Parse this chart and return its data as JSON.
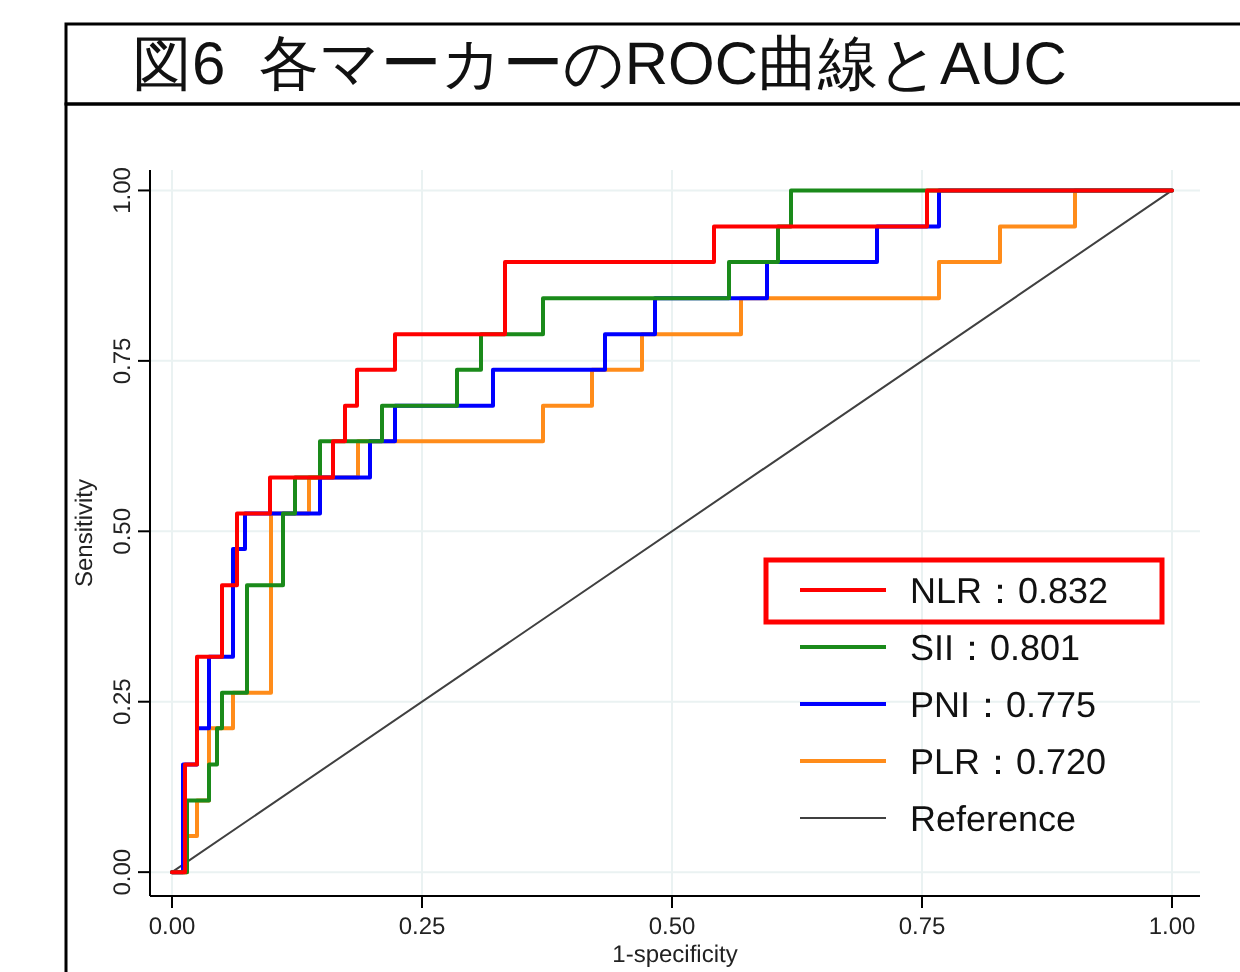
{
  "chart_data": {
    "type": "line",
    "title": "図6  各マーカーのROC曲線とAUC",
    "xlabel": "1-specificity",
    "ylabel": "Sensitivity",
    "xlim": [
      -0.022,
      1.028
    ],
    "ylim": [
      -0.035,
      1.03
    ],
    "xticks": [
      {
        "value": 0,
        "label": "0.00"
      },
      {
        "value": 0.25,
        "label": "0.25"
      },
      {
        "value": 0.5,
        "label": "0.50"
      },
      {
        "value": 0.75,
        "label": "0.75"
      },
      {
        "value": 1,
        "label": "1.00"
      }
    ],
    "yticks": [
      {
        "value": 0,
        "label": "0.00"
      },
      {
        "value": 0.25,
        "label": "0.25"
      },
      {
        "value": 0.5,
        "label": "0.50"
      },
      {
        "value": 0.75,
        "label": "0.75"
      },
      {
        "value": 1,
        "label": "1.00"
      }
    ],
    "grid": true,
    "legend": "bottom right",
    "series": [
      {
        "name": "NLR：0.832",
        "color": "#ff0000",
        "x": [
          0,
          0.013,
          0.013,
          0.025,
          0.025,
          0.05,
          0.05,
          0.065,
          0.065,
          0.098,
          0.098,
          0.161,
          0.161,
          0.173,
          0.173,
          0.185,
          0.185,
          0.223,
          0.223,
          0.333,
          0.333,
          0.542,
          0.542,
          0.755,
          0.755,
          1
        ],
        "values": [
          0,
          0,
          0.158,
          0.158,
          0.316,
          0.316,
          0.421,
          0.421,
          0.526,
          0.526,
          0.579,
          0.579,
          0.632,
          0.632,
          0.684,
          0.684,
          0.737,
          0.737,
          0.789,
          0.789,
          0.895,
          0.895,
          0.947,
          0.947,
          1,
          1
        ]
      },
      {
        "name": "SII：0.801",
        "color": "#1a8a1a",
        "x": [
          0,
          0.015,
          0.015,
          0.037,
          0.037,
          0.045,
          0.045,
          0.05,
          0.05,
          0.075,
          0.075,
          0.111,
          0.111,
          0.123,
          0.123,
          0.148,
          0.148,
          0.21,
          0.21,
          0.285,
          0.285,
          0.309,
          0.309,
          0.371,
          0.371,
          0.557,
          0.557,
          0.606,
          0.606,
          0.619,
          0.619,
          1
        ],
        "values": [
          0,
          0,
          0.105,
          0.105,
          0.158,
          0.158,
          0.211,
          0.211,
          0.263,
          0.263,
          0.421,
          0.421,
          0.526,
          0.526,
          0.579,
          0.579,
          0.632,
          0.632,
          0.684,
          0.684,
          0.737,
          0.737,
          0.789,
          0.789,
          0.842,
          0.842,
          0.895,
          0.895,
          0.947,
          0.947,
          1,
          1
        ]
      },
      {
        "name": "PNI：0.775",
        "color": "#0000ff",
        "x": [
          0,
          0.011,
          0.011,
          0.025,
          0.025,
          0.037,
          0.037,
          0.061,
          0.061,
          0.073,
          0.073,
          0.148,
          0.148,
          0.198,
          0.198,
          0.223,
          0.223,
          0.321,
          0.321,
          0.433,
          0.433,
          0.483,
          0.483,
          0.595,
          0.595,
          0.705,
          0.705,
          0.767,
          0.767,
          1
        ],
        "values": [
          0,
          0,
          0.158,
          0.158,
          0.211,
          0.211,
          0.316,
          0.316,
          0.474,
          0.474,
          0.526,
          0.526,
          0.579,
          0.579,
          0.632,
          0.632,
          0.684,
          0.684,
          0.737,
          0.737,
          0.789,
          0.789,
          0.842,
          0.842,
          0.895,
          0.895,
          0.947,
          0.947,
          1,
          1
        ]
      },
      {
        "name": "PLR：0.720",
        "color": "#ff8c1a",
        "x": [
          0,
          0.015,
          0.015,
          0.025,
          0.025,
          0.037,
          0.037,
          0.061,
          0.061,
          0.099,
          0.099,
          0.137,
          0.137,
          0.186,
          0.186,
          0.371,
          0.371,
          0.42,
          0.42,
          0.47,
          0.47,
          0.569,
          0.569,
          0.767,
          0.767,
          0.828,
          0.828,
          0.903,
          0.903,
          1
        ],
        "values": [
          0,
          0,
          0.053,
          0.053,
          0.105,
          0.105,
          0.211,
          0.211,
          0.263,
          0.263,
          0.526,
          0.526,
          0.579,
          0.579,
          0.632,
          0.632,
          0.684,
          0.684,
          0.737,
          0.737,
          0.789,
          0.789,
          0.842,
          0.842,
          0.895,
          0.895,
          0.947,
          0.947,
          1,
          1
        ]
      },
      {
        "name": "Reference",
        "color": "#404040",
        "x": [
          0,
          1
        ],
        "values": [
          0,
          1
        ]
      }
    ]
  }
}
